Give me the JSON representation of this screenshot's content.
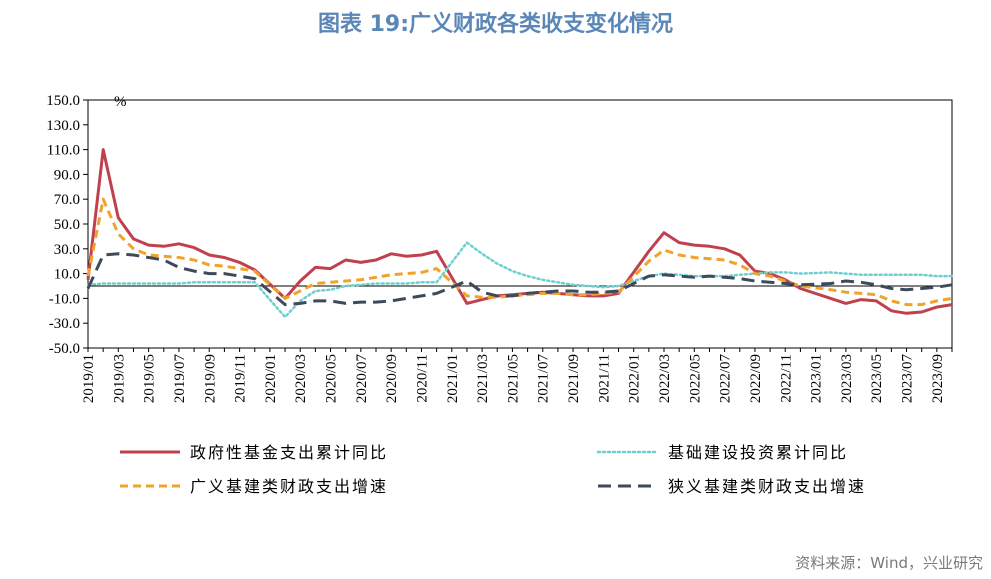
{
  "title": "图表 19:广义财政各类收支变化情况",
  "source": "资料来源：Wind，兴业研究",
  "colors": {
    "title": "#5b87b6",
    "source": "#7a7a7a",
    "series": [
      "#c0404e",
      "#6fcfcf",
      "#f0a32a",
      "#3d4a5c"
    ]
  },
  "chart_data": {
    "type": "line",
    "y_unit": "%",
    "ylim": [
      -50,
      150
    ],
    "y_ticks": [
      "150.0",
      "130.0",
      "110.0",
      "90.0",
      "70.0",
      "50.0",
      "30.0",
      "10.0",
      "-10.0",
      "-30.0",
      "-50.0"
    ],
    "x_tick_labels": [
      "2019/01",
      "2019/03",
      "2019/05",
      "2019/07",
      "2019/09",
      "2019/11",
      "2020/01",
      "2020/03",
      "2020/05",
      "2020/07",
      "2020/09",
      "2020/11",
      "2021/01",
      "2021/03",
      "2021/05",
      "2021/07",
      "2021/09",
      "2021/11",
      "2022/01",
      "2022/03",
      "2022/05",
      "2022/07",
      "2022/09",
      "2022/11",
      "2023/01",
      "2023/03",
      "2023/05",
      "2023/07",
      "2023/09"
    ],
    "x": [
      "2019/01",
      "2019/02",
      "2019/03",
      "2019/04",
      "2019/05",
      "2019/06",
      "2019/07",
      "2019/08",
      "2019/09",
      "2019/10",
      "2019/11",
      "2019/12",
      "2020/01",
      "2020/02",
      "2020/03",
      "2020/04",
      "2020/05",
      "2020/06",
      "2020/07",
      "2020/08",
      "2020/09",
      "2020/10",
      "2020/11",
      "2020/12",
      "2021/01",
      "2021/02",
      "2021/03",
      "2021/04",
      "2021/05",
      "2021/06",
      "2021/07",
      "2021/08",
      "2021/09",
      "2021/10",
      "2021/11",
      "2021/12",
      "2022/01",
      "2022/02",
      "2022/03",
      "2022/04",
      "2022/05",
      "2022/06",
      "2022/07",
      "2022/08",
      "2022/09",
      "2022/10",
      "2022/11",
      "2022/12",
      "2023/01",
      "2023/02",
      "2023/03",
      "2023/04",
      "2023/05",
      "2023/06",
      "2023/07",
      "2023/08",
      "2023/09",
      "2023/10"
    ],
    "series": [
      {
        "name": "政府性基金支出累计同比",
        "style": "solid",
        "values": [
          5,
          110,
          55,
          38,
          33,
          32,
          34,
          31,
          25,
          23,
          19,
          13,
          null,
          -10,
          4,
          15,
          14,
          21,
          19,
          21,
          26,
          24,
          25,
          28,
          null,
          -14,
          -11,
          -8,
          -7,
          -6,
          -5,
          -6,
          -7,
          -8,
          -8,
          -6,
          null,
          28,
          43,
          35,
          33,
          32,
          30,
          25,
          12,
          10,
          5,
          -2,
          null,
          -10,
          -14,
          -11,
          -12,
          -20,
          -22,
          -21,
          -17,
          -15
        ]
      },
      {
        "name": "基础建设投资累计同比",
        "style": "dotted",
        "values": [
          1,
          2,
          2,
          2,
          2,
          2,
          2,
          3,
          3,
          3,
          3,
          3,
          null,
          -25,
          -12,
          -4,
          -3,
          0,
          1,
          2,
          2,
          2,
          3,
          3,
          null,
          35,
          26,
          18,
          12,
          8,
          5,
          3,
          1,
          0,
          -1,
          0,
          null,
          8,
          10,
          9,
          8,
          8,
          8,
          9,
          10,
          11,
          11,
          10,
          null,
          11,
          10,
          9,
          9,
          9,
          9,
          9,
          8,
          8
        ]
      },
      {
        "name": "广义基建类财政支出增速",
        "style": "dashed",
        "values": [
          8,
          70,
          42,
          30,
          25,
          24,
          23,
          21,
          17,
          16,
          14,
          12,
          null,
          -10,
          -4,
          2,
          3,
          4,
          5,
          7,
          9,
          10,
          11,
          14,
          null,
          -8,
          -9,
          -9,
          -8,
          -7,
          -6,
          -6,
          -7,
          -7,
          -6,
          -5,
          null,
          20,
          29,
          25,
          23,
          22,
          21,
          17,
          10,
          8,
          4,
          0,
          null,
          -3,
          -5,
          -6,
          -7,
          -12,
          -15,
          -15,
          -12,
          -10
        ]
      },
      {
        "name": "狭义基建类财政支出增速",
        "style": "dashed-long",
        "values": [
          -2,
          25,
          26,
          25,
          23,
          21,
          15,
          12,
          10,
          10,
          8,
          6,
          null,
          -15,
          -14,
          -12,
          -12,
          -14,
          -13,
          -13,
          -12,
          -10,
          -8,
          -6,
          null,
          4,
          -5,
          -8,
          -8,
          -6,
          -5,
          -4,
          -4,
          -5,
          -5,
          -4,
          null,
          8,
          9,
          8,
          7,
          8,
          7,
          6,
          4,
          3,
          2,
          1,
          null,
          2,
          4,
          3,
          1,
          -2,
          -3,
          -2,
          -1,
          1
        ]
      }
    ]
  }
}
